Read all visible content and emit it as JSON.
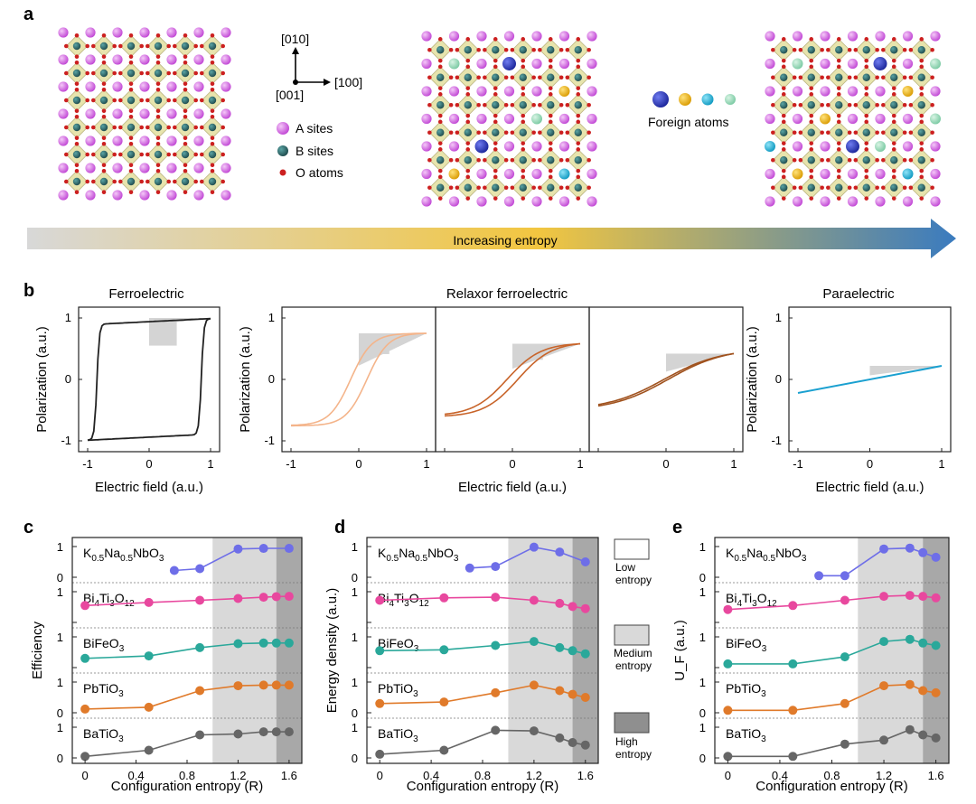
{
  "panels": {
    "a": "a",
    "b": "b",
    "c": "c",
    "d": "d",
    "e": "e"
  },
  "structures": {
    "axes": {
      "y": "[010]",
      "x": "[100]",
      "z": "[001]"
    },
    "legend": {
      "a_sites": "A sites",
      "b_sites": "B sites",
      "o_atoms": "O atoms"
    },
    "foreign_atoms_label": "Foreign atoms",
    "arrow_label": "Increasing entropy",
    "colors": {
      "a_site": "#cc55dd",
      "b_site": "#2f6e6e",
      "o_atom": "#cc2020",
      "octahedron": "#e6e3a9",
      "foreign_blue": "#2233bb",
      "foreign_gold": "#e6a800",
      "foreign_cyan": "#12a8d0",
      "foreign_mint": "#88d6b0"
    }
  },
  "hysteresis": {
    "titles": {
      "ferro": "Ferroelectric",
      "relaxor": "Relaxor ferroelectric",
      "para": "Paraelectric"
    },
    "ylabel": "Polarization (a.u.)",
    "xlabel": "Electric field (a.u.)",
    "yticks": [
      "1",
      "0",
      "-1"
    ],
    "xticks": [
      "-1",
      "0",
      "1"
    ],
    "plot_types": [
      "ferroelectric-loop",
      "relaxor-loop",
      "relaxor-loop",
      "relaxor-loop",
      "paraelectric-line"
    ],
    "saturation": [
      1.0,
      0.75,
      0.58,
      0.42,
      0.22
    ]
  },
  "chart_data": [
    {
      "type": "line",
      "panel": "c",
      "ylabel": "Efficiency",
      "xlabel": "Configuration entropy (R)",
      "xlim": [
        -0.1,
        1.7
      ],
      "xticks": [
        "0",
        "0.4",
        "0.8",
        "1.2",
        "1.6"
      ],
      "tick_top": "1",
      "tick_bottom": "0",
      "series": [
        {
          "name": "K0.5Na0.5NbO3",
          "label": {
            "parts": [
              [
                "K",
                ""
              ],
              [
                "0.5",
                "sub"
              ],
              [
                "Na",
                ""
              ],
              [
                "0.5",
                "sub"
              ],
              [
                "NbO",
                ""
              ],
              [
                "3",
                "sub"
              ]
            ]
          },
          "color": "#6e6ee8",
          "x": [
            0.7,
            0.9,
            1.2,
            1.4,
            1.6
          ],
          "y": [
            0.22,
            0.28,
            0.92,
            0.94,
            0.94
          ]
        },
        {
          "name": "Bi4Ti3O12",
          "label": {
            "parts": [
              [
                "Bi",
                ""
              ],
              [
                "4",
                "sub"
              ],
              [
                "Ti",
                ""
              ],
              [
                "3",
                "sub"
              ],
              [
                "O",
                ""
              ],
              [
                "12",
                "sub"
              ]
            ]
          },
          "color": "#e8489e",
          "x": [
            0,
            0.5,
            0.9,
            1.2,
            1.4,
            1.5,
            1.6
          ],
          "y": [
            0.55,
            0.65,
            0.72,
            0.78,
            0.82,
            0.84,
            0.85
          ]
        },
        {
          "name": "BiFeO3",
          "label": {
            "parts": [
              [
                "BiFeO",
                ""
              ],
              [
                "3",
                "sub"
              ]
            ]
          },
          "color": "#2aa89a",
          "x": [
            0,
            0.5,
            0.9,
            1.2,
            1.4,
            1.5,
            1.6
          ],
          "y": [
            0.3,
            0.38,
            0.65,
            0.78,
            0.8,
            0.8,
            0.8
          ]
        },
        {
          "name": "PbTiO3",
          "label": {
            "parts": [
              [
                "PbTiO",
                ""
              ],
              [
                "3",
                "sub"
              ]
            ]
          },
          "color": "#e07a2a",
          "x": [
            0,
            0.5,
            0.9,
            1.2,
            1.4,
            1.5,
            1.6
          ],
          "y": [
            0.12,
            0.18,
            0.72,
            0.88,
            0.9,
            0.9,
            0.9
          ]
        },
        {
          "name": "BaTiO3",
          "label": {
            "parts": [
              [
                "BaTiO",
                ""
              ],
              [
                "3",
                "sub"
              ]
            ]
          },
          "color": "#666666",
          "x": [
            0,
            0.5,
            0.9,
            1.2,
            1.4,
            1.5,
            1.6
          ],
          "y": [
            0.05,
            0.25,
            0.75,
            0.78,
            0.85,
            0.85,
            0.85
          ]
        }
      ]
    },
    {
      "type": "line",
      "panel": "d",
      "ylabel": "Energy density (a.u.)",
      "xlabel": "Configuration entropy (R)",
      "xlim": [
        -0.1,
        1.7
      ],
      "xticks": [
        "0",
        "0.4",
        "0.8",
        "1.2",
        "1.6"
      ],
      "tick_top": "1",
      "tick_bottom": "0",
      "series": [
        {
          "name": "K0.5Na0.5NbO3",
          "label": {
            "parts": [
              [
                "K",
                ""
              ],
              [
                "0.5",
                "sub"
              ],
              [
                "Na",
                ""
              ],
              [
                "0.5",
                "sub"
              ],
              [
                "NbO",
                ""
              ],
              [
                "3",
                "sub"
              ]
            ]
          },
          "color": "#6e6ee8",
          "x": [
            0.7,
            0.9,
            1.2,
            1.4,
            1.6
          ],
          "y": [
            0.3,
            0.35,
            0.98,
            0.82,
            0.5
          ]
        },
        {
          "name": "Bi4Ti3O12",
          "label": {
            "parts": [
              [
                "Bi",
                ""
              ],
              [
                "4",
                "sub"
              ],
              [
                "Ti",
                ""
              ],
              [
                "3",
                "sub"
              ],
              [
                "O",
                ""
              ],
              [
                "12",
                "sub"
              ]
            ]
          },
          "color": "#e8489e",
          "x": [
            0,
            0.5,
            0.9,
            1.2,
            1.4,
            1.5,
            1.6
          ],
          "y": [
            0.72,
            0.8,
            0.82,
            0.72,
            0.62,
            0.52,
            0.45
          ]
        },
        {
          "name": "BiFeO3",
          "label": {
            "parts": [
              [
                "BiFeO",
                ""
              ],
              [
                "3",
                "sub"
              ]
            ]
          },
          "color": "#2aa89a",
          "x": [
            0,
            0.5,
            0.9,
            1.2,
            1.4,
            1.5,
            1.6
          ],
          "y": [
            0.55,
            0.58,
            0.72,
            0.85,
            0.65,
            0.55,
            0.45
          ]
        },
        {
          "name": "PbTiO3",
          "label": {
            "parts": [
              [
                "PbTiO",
                ""
              ],
              [
                "3",
                "sub"
              ]
            ]
          },
          "color": "#e07a2a",
          "x": [
            0,
            0.5,
            0.9,
            1.2,
            1.4,
            1.5,
            1.6
          ],
          "y": [
            0.3,
            0.35,
            0.65,
            0.9,
            0.72,
            0.6,
            0.5
          ]
        },
        {
          "name": "BaTiO3",
          "label": {
            "parts": [
              [
                "BaTiO",
                ""
              ],
              [
                "3",
                "sub"
              ]
            ]
          },
          "color": "#666666",
          "x": [
            0,
            0.5,
            0.9,
            1.2,
            1.4,
            1.5,
            1.6
          ],
          "y": [
            0.12,
            0.25,
            0.9,
            0.88,
            0.65,
            0.5,
            0.42
          ]
        }
      ]
    },
    {
      "type": "line",
      "panel": "e",
      "ylabel": "U_F (a.u.)",
      "xlabel": "Configuration entropy (R)",
      "xlim": [
        -0.1,
        1.7
      ],
      "xticks": [
        "0",
        "0.4",
        "0.8",
        "1.2",
        "1.6"
      ],
      "tick_top": "1",
      "tick_bottom": "0",
      "series": [
        {
          "name": "K0.5Na0.5NbO3",
          "label": {
            "parts": [
              [
                "K",
                ""
              ],
              [
                "0.5",
                "sub"
              ],
              [
                "Na",
                ""
              ],
              [
                "0.5",
                "sub"
              ],
              [
                "NbO",
                ""
              ],
              [
                "3",
                "sub"
              ]
            ]
          },
          "color": "#6e6ee8",
          "x": [
            0.7,
            0.9,
            1.2,
            1.4,
            1.5,
            1.6
          ],
          "y": [
            0.05,
            0.05,
            0.92,
            0.95,
            0.8,
            0.65
          ]
        },
        {
          "name": "Bi4Ti3O12",
          "label": {
            "parts": [
              [
                "Bi",
                ""
              ],
              [
                "4",
                "sub"
              ],
              [
                "Ti",
                ""
              ],
              [
                "3",
                "sub"
              ],
              [
                "O",
                ""
              ],
              [
                "12",
                "sub"
              ]
            ]
          },
          "color": "#e8489e",
          "x": [
            0,
            0.5,
            0.9,
            1.2,
            1.4,
            1.5,
            1.6
          ],
          "y": [
            0.42,
            0.55,
            0.72,
            0.85,
            0.88,
            0.85,
            0.8
          ]
        },
        {
          "name": "BiFeO3",
          "label": {
            "parts": [
              [
                "BiFeO",
                ""
              ],
              [
                "3",
                "sub"
              ]
            ]
          },
          "color": "#2aa89a",
          "x": [
            0,
            0.5,
            0.9,
            1.2,
            1.4,
            1.5,
            1.6
          ],
          "y": [
            0.12,
            0.12,
            0.35,
            0.85,
            0.92,
            0.8,
            0.72
          ]
        },
        {
          "name": "PbTiO3",
          "label": {
            "parts": [
              [
                "PbTiO",
                ""
              ],
              [
                "3",
                "sub"
              ]
            ]
          },
          "color": "#e07a2a",
          "x": [
            0,
            0.5,
            0.9,
            1.2,
            1.4,
            1.5,
            1.6
          ],
          "y": [
            0.08,
            0.08,
            0.3,
            0.88,
            0.92,
            0.72,
            0.65
          ]
        },
        {
          "name": "BaTiO3",
          "label": {
            "parts": [
              [
                "BaTiO",
                ""
              ],
              [
                "3",
                "sub"
              ]
            ]
          },
          "color": "#666666",
          "x": [
            0,
            0.5,
            0.9,
            1.2,
            1.4,
            1.5,
            1.6
          ],
          "y": [
            0.05,
            0.05,
            0.45,
            0.58,
            0.92,
            0.75,
            0.65
          ]
        }
      ]
    }
  ],
  "entropy_regions": {
    "low": {
      "x": [
        -0.1,
        1.0
      ],
      "color": "#f4f4f4",
      "label_1": "Low",
      "label_2": "entropy"
    },
    "medium": {
      "x": [
        1.0,
        1.5
      ],
      "color": "#d9d9d9",
      "label_1": "Medium",
      "label_2": "entropy"
    },
    "high": {
      "x": [
        1.5,
        1.7
      ],
      "color": "#a8a8a8",
      "label_1": "High",
      "label_2": "entropy"
    }
  }
}
